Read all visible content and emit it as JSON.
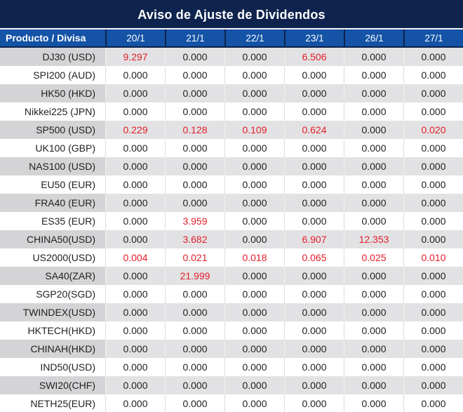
{
  "title": "Aviso de Ajuste de Dividendos",
  "colors": {
    "title_bg": "#0e234d",
    "header_bg": "#1453a6",
    "row_alt_bg": "#e2e2e4",
    "row_alt_label_bg": "#d4d4d7",
    "highlight_red": "#e31d28",
    "text_dark": "#1f1f1f"
  },
  "table": {
    "product_header": "Producto / Divisa",
    "date_headers": [
      "20/1",
      "21/1",
      "22/1",
      "23/1",
      "26/1",
      "27/1"
    ],
    "rows": [
      {
        "product": "DJ30 (USD)",
        "values": [
          "9.297",
          "0.000",
          "0.000",
          "6.506",
          "0.000",
          "0.000"
        ],
        "red": [
          true,
          false,
          false,
          true,
          false,
          false
        ]
      },
      {
        "product": "SPI200 (AUD)",
        "values": [
          "0.000",
          "0.000",
          "0.000",
          "0.000",
          "0.000",
          "0.000"
        ],
        "red": [
          false,
          false,
          false,
          false,
          false,
          false
        ]
      },
      {
        "product": "HK50 (HKD)",
        "values": [
          "0.000",
          "0.000",
          "0.000",
          "0.000",
          "0.000",
          "0.000"
        ],
        "red": [
          false,
          false,
          false,
          false,
          false,
          false
        ]
      },
      {
        "product": "Nikkei225 (JPN)",
        "values": [
          "0.000",
          "0.000",
          "0.000",
          "0.000",
          "0.000",
          "0.000"
        ],
        "red": [
          false,
          false,
          false,
          false,
          false,
          false
        ]
      },
      {
        "product": "SP500 (USD)",
        "values": [
          "0.229",
          "0.128",
          "0.109",
          "0.624",
          "0.000",
          "0.020"
        ],
        "red": [
          true,
          true,
          true,
          true,
          false,
          true
        ]
      },
      {
        "product": "UK100 (GBP)",
        "values": [
          "0.000",
          "0.000",
          "0.000",
          "0.000",
          "0.000",
          "0.000"
        ],
        "red": [
          false,
          false,
          false,
          false,
          false,
          false
        ]
      },
      {
        "product": "NAS100 (USD)",
        "values": [
          "0.000",
          "0.000",
          "0.000",
          "0.000",
          "0.000",
          "0.000"
        ],
        "red": [
          false,
          false,
          false,
          false,
          false,
          false
        ]
      },
      {
        "product": "EU50 (EUR)",
        "values": [
          "0.000",
          "0.000",
          "0.000",
          "0.000",
          "0.000",
          "0.000"
        ],
        "red": [
          false,
          false,
          false,
          false,
          false,
          false
        ]
      },
      {
        "product": "FRA40 (EUR)",
        "values": [
          "0.000",
          "0.000",
          "0.000",
          "0.000",
          "0.000",
          "0.000"
        ],
        "red": [
          false,
          false,
          false,
          false,
          false,
          false
        ]
      },
      {
        "product": "ES35 (EUR)",
        "values": [
          "0.000",
          "3.959",
          "0.000",
          "0.000",
          "0.000",
          "0.000"
        ],
        "red": [
          false,
          true,
          false,
          false,
          false,
          false
        ]
      },
      {
        "product": "CHINA50(USD)",
        "values": [
          "0.000",
          "3.682",
          "0.000",
          "6.907",
          "12.353",
          "0.000"
        ],
        "red": [
          false,
          true,
          false,
          true,
          true,
          false
        ]
      },
      {
        "product": "US2000(USD)",
        "values": [
          "0.004",
          "0.021",
          "0.018",
          "0.065",
          "0.025",
          "0.010"
        ],
        "red": [
          true,
          true,
          true,
          true,
          true,
          true
        ]
      },
      {
        "product": "SA40(ZAR)",
        "values": [
          "0.000",
          "21.999",
          "0.000",
          "0.000",
          "0.000",
          "0.000"
        ],
        "red": [
          false,
          true,
          false,
          false,
          false,
          false
        ]
      },
      {
        "product": "SGP20(SGD)",
        "values": [
          "0.000",
          "0.000",
          "0.000",
          "0.000",
          "0.000",
          "0.000"
        ],
        "red": [
          false,
          false,
          false,
          false,
          false,
          false
        ]
      },
      {
        "product": "TWINDEX(USD)",
        "values": [
          "0.000",
          "0.000",
          "0.000",
          "0.000",
          "0.000",
          "0.000"
        ],
        "red": [
          false,
          false,
          false,
          false,
          false,
          false
        ]
      },
      {
        "product": "HKTECH(HKD)",
        "values": [
          "0.000",
          "0.000",
          "0.000",
          "0.000",
          "0.000",
          "0.000"
        ],
        "red": [
          false,
          false,
          false,
          false,
          false,
          false
        ]
      },
      {
        "product": "CHINAH(HKD)",
        "values": [
          "0.000",
          "0.000",
          "0.000",
          "0.000",
          "0.000",
          "0.000"
        ],
        "red": [
          false,
          false,
          false,
          false,
          false,
          false
        ]
      },
      {
        "product": "IND50(USD)",
        "values": [
          "0.000",
          "0.000",
          "0.000",
          "0.000",
          "0.000",
          "0.000"
        ],
        "red": [
          false,
          false,
          false,
          false,
          false,
          false
        ]
      },
      {
        "product": "SWI20(CHF)",
        "values": [
          "0.000",
          "0.000",
          "0.000",
          "0.000",
          "0.000",
          "0.000"
        ],
        "red": [
          false,
          false,
          false,
          false,
          false,
          false
        ]
      },
      {
        "product": "NETH25(EUR)",
        "values": [
          "0.000",
          "0.000",
          "0.000",
          "0.000",
          "0.000",
          "0.000"
        ],
        "red": [
          false,
          false,
          false,
          false,
          false,
          false
        ]
      }
    ]
  },
  "chart_data": {
    "type": "table",
    "title": "Aviso de Ajuste de Dividendos",
    "columns": [
      "Producto / Divisa",
      "20/1",
      "21/1",
      "22/1",
      "23/1",
      "26/1",
      "27/1"
    ],
    "rows": [
      [
        "DJ30 (USD)",
        9.297,
        0.0,
        0.0,
        6.506,
        0.0,
        0.0
      ],
      [
        "SPI200 (AUD)",
        0.0,
        0.0,
        0.0,
        0.0,
        0.0,
        0.0
      ],
      [
        "HK50 (HKD)",
        0.0,
        0.0,
        0.0,
        0.0,
        0.0,
        0.0
      ],
      [
        "Nikkei225 (JPN)",
        0.0,
        0.0,
        0.0,
        0.0,
        0.0,
        0.0
      ],
      [
        "SP500 (USD)",
        0.229,
        0.128,
        0.109,
        0.624,
        0.0,
        0.02
      ],
      [
        "UK100 (GBP)",
        0.0,
        0.0,
        0.0,
        0.0,
        0.0,
        0.0
      ],
      [
        "NAS100 (USD)",
        0.0,
        0.0,
        0.0,
        0.0,
        0.0,
        0.0
      ],
      [
        "EU50 (EUR)",
        0.0,
        0.0,
        0.0,
        0.0,
        0.0,
        0.0
      ],
      [
        "FRA40 (EUR)",
        0.0,
        0.0,
        0.0,
        0.0,
        0.0,
        0.0
      ],
      [
        "ES35 (EUR)",
        0.0,
        3.959,
        0.0,
        0.0,
        0.0,
        0.0
      ],
      [
        "CHINA50(USD)",
        0.0,
        3.682,
        0.0,
        6.907,
        12.353,
        0.0
      ],
      [
        "US2000(USD)",
        0.004,
        0.021,
        0.018,
        0.065,
        0.025,
        0.01
      ],
      [
        "SA40(ZAR)",
        0.0,
        21.999,
        0.0,
        0.0,
        0.0,
        0.0
      ],
      [
        "SGP20(SGD)",
        0.0,
        0.0,
        0.0,
        0.0,
        0.0,
        0.0
      ],
      [
        "TWINDEX(USD)",
        0.0,
        0.0,
        0.0,
        0.0,
        0.0,
        0.0
      ],
      [
        "HKTECH(HKD)",
        0.0,
        0.0,
        0.0,
        0.0,
        0.0,
        0.0
      ],
      [
        "CHINAH(HKD)",
        0.0,
        0.0,
        0.0,
        0.0,
        0.0,
        0.0
      ],
      [
        "IND50(USD)",
        0.0,
        0.0,
        0.0,
        0.0,
        0.0,
        0.0
      ],
      [
        "SWI20(CHF)",
        0.0,
        0.0,
        0.0,
        0.0,
        0.0,
        0.0
      ],
      [
        "NETH25(EUR)",
        0.0,
        0.0,
        0.0,
        0.0,
        0.0,
        0.0
      ]
    ],
    "nonzero_highlight_color": "#e31d28",
    "legend_position": "none",
    "grid": "row-striped"
  }
}
